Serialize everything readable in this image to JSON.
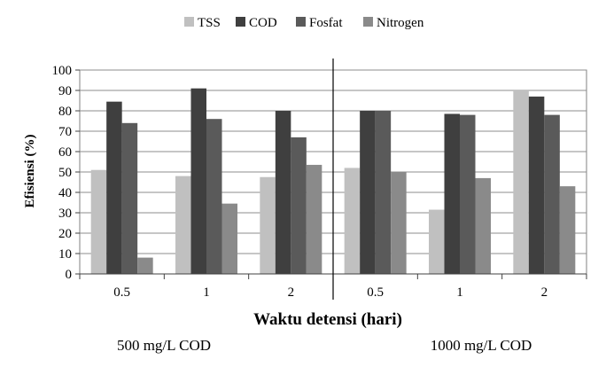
{
  "chart_data": {
    "type": "bar",
    "title": "",
    "xlabel": "Waktu detensi (hari)",
    "ylabel": "Efisiensi (%)",
    "ylim": [
      0,
      100
    ],
    "yticks": [
      0,
      10,
      20,
      30,
      40,
      50,
      60,
      70,
      80,
      90,
      100
    ],
    "grid": true,
    "legend_position": "top",
    "categories": [
      "0.5",
      "1",
      "2",
      "0.5",
      "1",
      "2"
    ],
    "groups": [
      {
        "label": "500 mg/L COD",
        "categories": [
          "0.5",
          "1",
          "2"
        ]
      },
      {
        "label": "1000 mg/L COD",
        "categories": [
          "0.5",
          "1",
          "2"
        ]
      }
    ],
    "series": [
      {
        "name": "TSS",
        "color": "#c0c0c0",
        "values": [
          51,
          48,
          47.5,
          52,
          31.5,
          90
        ]
      },
      {
        "name": "COD",
        "color": "#3f3f3f",
        "values": [
          84.5,
          91,
          80,
          80,
          78.5,
          87
        ]
      },
      {
        "name": "Fosfat",
        "color": "#5a5a5a",
        "values": [
          74,
          76,
          67,
          80,
          78,
          78
        ]
      },
      {
        "name": "Nitrogen",
        "color": "#8a8a8a",
        "values": [
          8,
          34.5,
          53.5,
          50,
          47,
          43
        ]
      }
    ]
  }
}
